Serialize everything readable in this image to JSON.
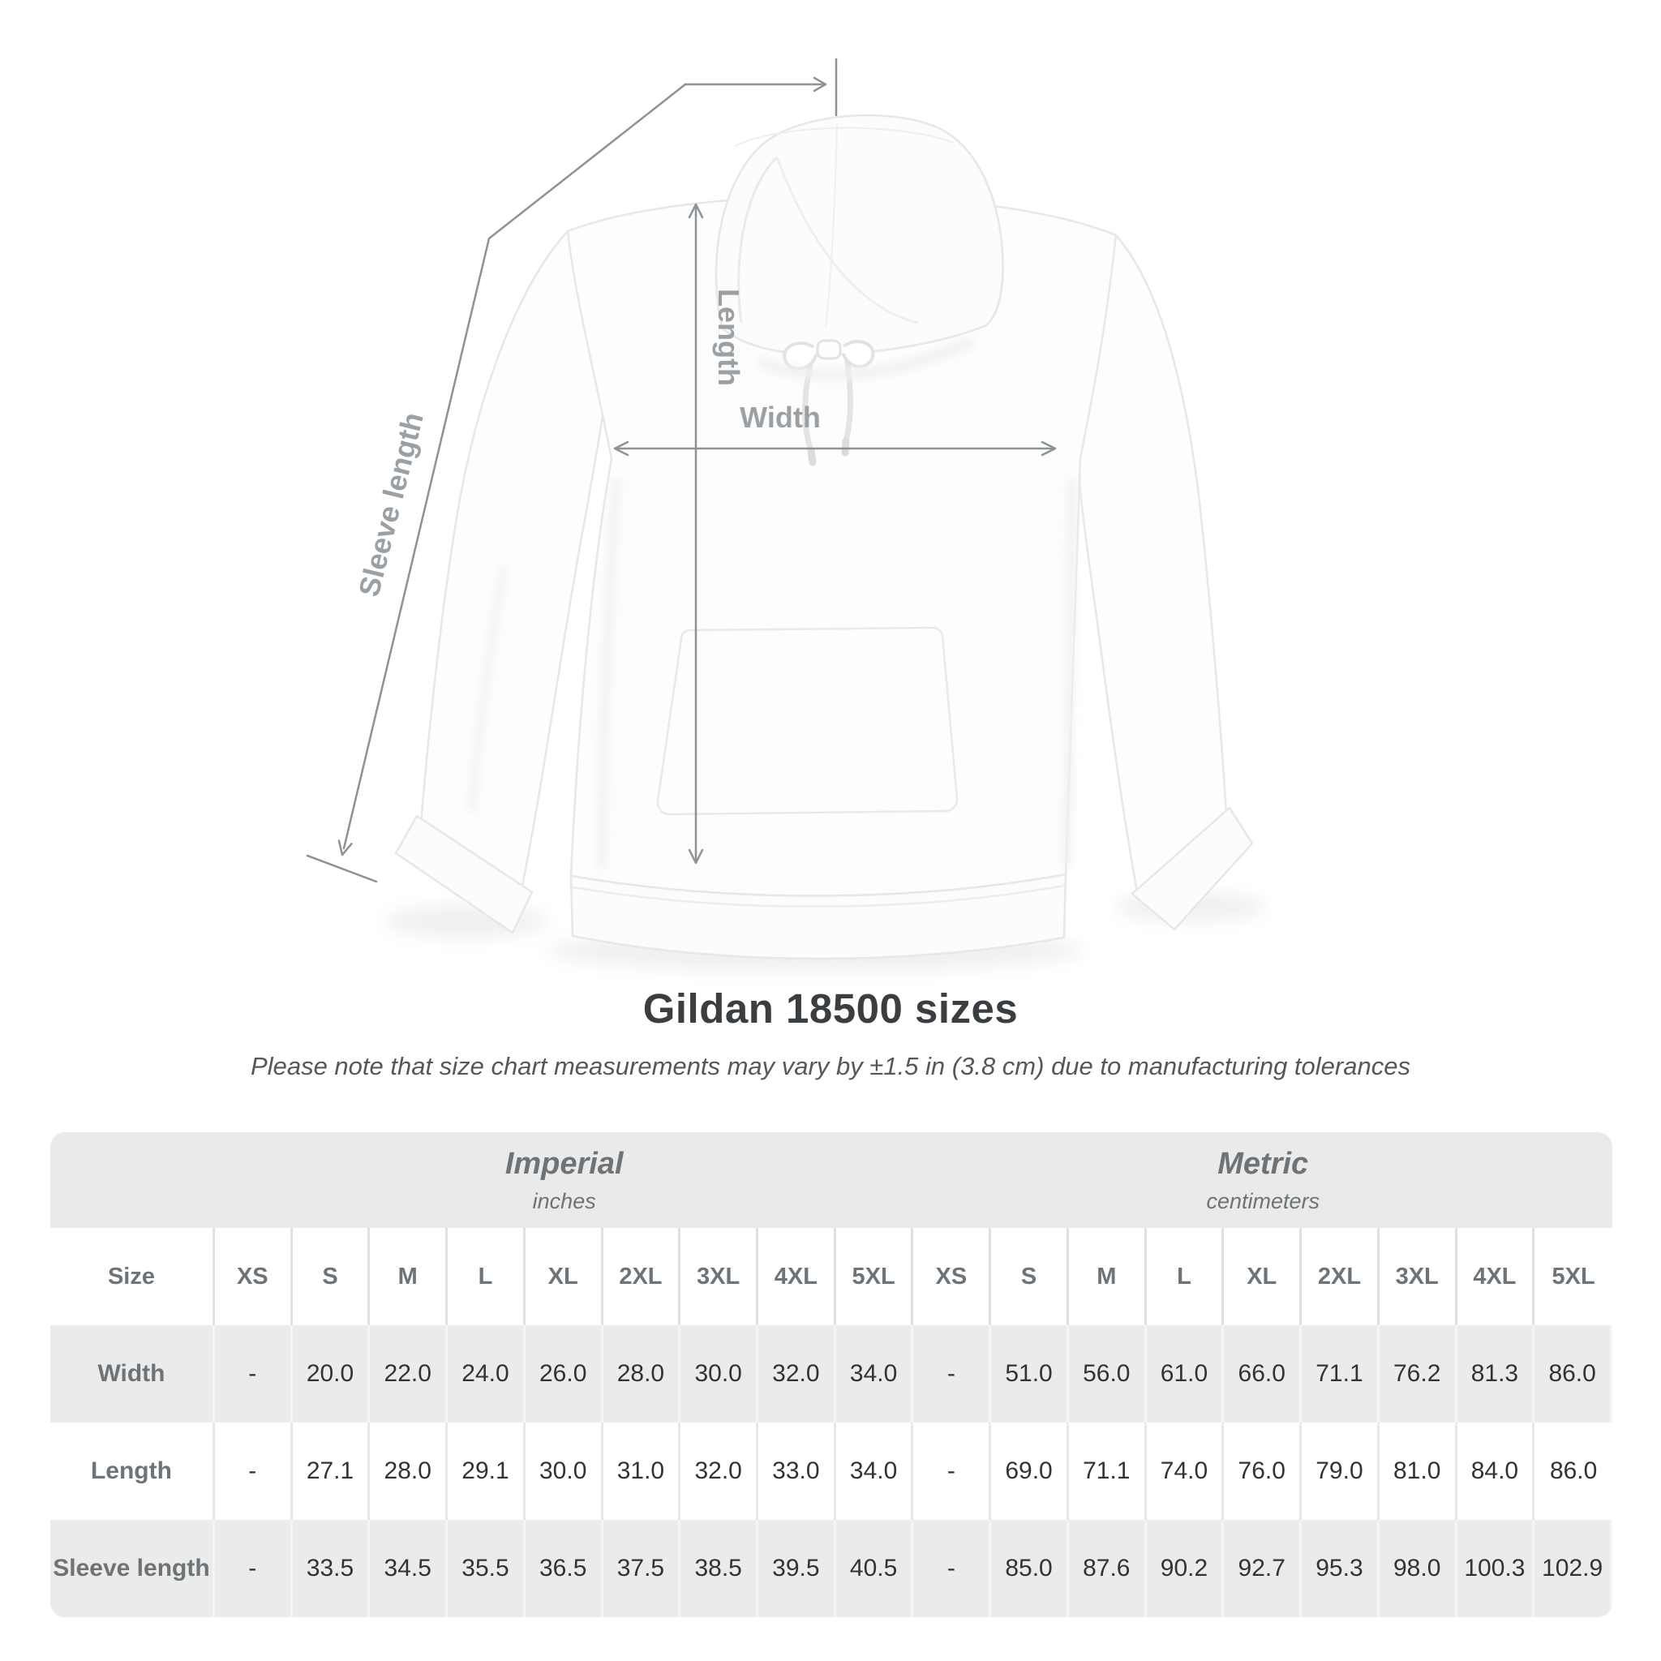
{
  "page": {
    "background": "#ffffff"
  },
  "diagram": {
    "labels": {
      "length": "Length",
      "width": "Width",
      "sleeve_length": "Sleeve length"
    },
    "line_color": "#8d9296",
    "label_color": "#9aa0a4"
  },
  "heading": {
    "title": "Gildan 18500 sizes",
    "subtitle": "Please note that size chart measurements may vary by ±1.5 in (3.8 cm) due to manufacturing tolerances"
  },
  "chart_data": {
    "type": "table",
    "title": "Gildan 18500 sizes",
    "size_column_header": "Size",
    "unit_groups": [
      {
        "name": "Imperial",
        "unit": "inches"
      },
      {
        "name": "Metric",
        "unit": "centimeters"
      }
    ],
    "sizes": [
      "XS",
      "S",
      "M",
      "L",
      "XL",
      "2XL",
      "3XL",
      "4XL",
      "5XL"
    ],
    "rows": [
      {
        "label": "Width",
        "imperial": [
          "-",
          "20.0",
          "22.0",
          "24.0",
          "26.0",
          "28.0",
          "30.0",
          "32.0",
          "34.0"
        ],
        "metric": [
          "-",
          "51.0",
          "56.0",
          "61.0",
          "66.0",
          "71.1",
          "76.2",
          "81.3",
          "86.0"
        ]
      },
      {
        "label": "Length",
        "imperial": [
          "-",
          "27.1",
          "28.0",
          "29.1",
          "30.0",
          "31.0",
          "32.0",
          "33.0",
          "34.0"
        ],
        "metric": [
          "-",
          "69.0",
          "71.1",
          "74.0",
          "76.0",
          "79.0",
          "81.0",
          "84.0",
          "86.0"
        ]
      },
      {
        "label": "Sleeve length",
        "imperial": [
          "-",
          "33.5",
          "34.5",
          "35.5",
          "36.5",
          "37.5",
          "38.5",
          "39.5",
          "40.5"
        ],
        "metric": [
          "-",
          "85.0",
          "87.6",
          "90.2",
          "92.7",
          "95.3",
          "98.0",
          "100.3",
          "102.9"
        ]
      }
    ]
  },
  "colors": {
    "band_bg": "#eaeaea",
    "row_alt_bg": "#ebebeb",
    "header_text": "#6d7377",
    "value_text": "#313436",
    "title_text": "#3b3e41",
    "subtitle_text": "#55585b",
    "dimension_line": "#8d9296"
  }
}
